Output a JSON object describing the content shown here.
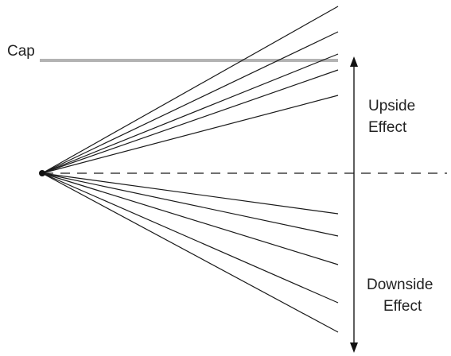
{
  "labels": {
    "cap": "Cap",
    "upside_line1": "Upside",
    "upside_line2": "Effect",
    "downside_line1": "Downside",
    "downside_line2": "Effect"
  },
  "colors": {
    "cap_line": "#b3b3b3",
    "ray": "#1a1a1a",
    "text": "#222222",
    "baseline": "#1a1a1a"
  }
}
